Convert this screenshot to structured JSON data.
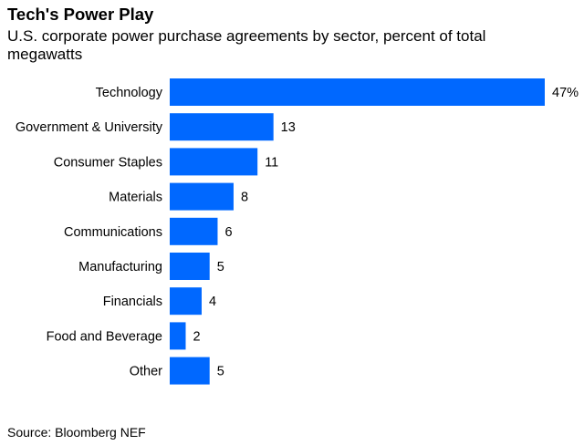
{
  "header": {
    "title": "Tech's Power Play",
    "subtitle": "U.S. corporate power purchase agreements by sector, percent of total megawatts"
  },
  "footer": {
    "source": "Source: Bloomberg NEF"
  },
  "colors": {
    "bar": "#0068ff"
  },
  "chart_data": {
    "type": "bar",
    "orientation": "horizontal",
    "title": "Tech's Power Play",
    "subtitle": "U.S. corporate power purchase agreements by sector, percent of total megawatts",
    "categories": [
      "Technology",
      "Government & University",
      "Consumer Staples",
      "Materials",
      "Communications",
      "Manufacturing",
      "Financials",
      "Food and Beverage",
      "Other"
    ],
    "values": [
      47,
      13,
      11,
      8,
      6,
      5,
      4,
      2,
      5
    ],
    "value_labels": [
      "47%",
      "13",
      "11",
      "8",
      "6",
      "5",
      "4",
      "2",
      "5"
    ],
    "xlim": [
      0,
      47
    ],
    "grid": false,
    "legend": "none"
  }
}
